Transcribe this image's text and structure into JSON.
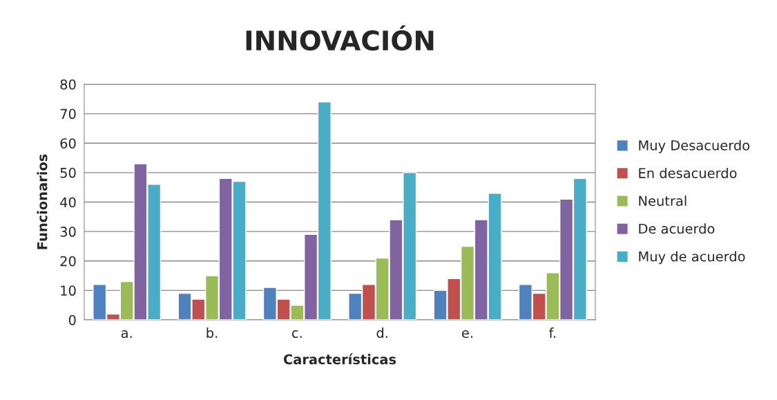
{
  "chart_data": {
    "type": "bar",
    "title": "INNOVACIÓN",
    "xlabel": "Características",
    "ylabel": "Funcionarios",
    "categories": [
      "a.",
      "b.",
      "c.",
      "d.",
      "e.",
      "f."
    ],
    "series": [
      {
        "name": "Muy Desacuerdo",
        "color": "#4f81bd",
        "values": [
          12,
          9,
          11,
          9,
          10,
          12
        ]
      },
      {
        "name": "En desacuerdo",
        "color": "#c0504d",
        "values": [
          2,
          7,
          7,
          12,
          14,
          9
        ]
      },
      {
        "name": "Neutral",
        "color": "#9bbb59",
        "values": [
          13,
          15,
          5,
          21,
          25,
          16
        ]
      },
      {
        "name": "De acuerdo",
        "color": "#8064a2",
        "values": [
          53,
          48,
          29,
          34,
          34,
          41
        ]
      },
      {
        "name": "Muy de acuerdo",
        "color": "#4bacc6",
        "values": [
          46,
          47,
          74,
          50,
          43,
          48
        ]
      }
    ],
    "ylim": [
      0,
      80
    ],
    "yticks": [
      0,
      10,
      20,
      30,
      40,
      50,
      60,
      70,
      80
    ],
    "grid": "y",
    "legend": "right"
  }
}
